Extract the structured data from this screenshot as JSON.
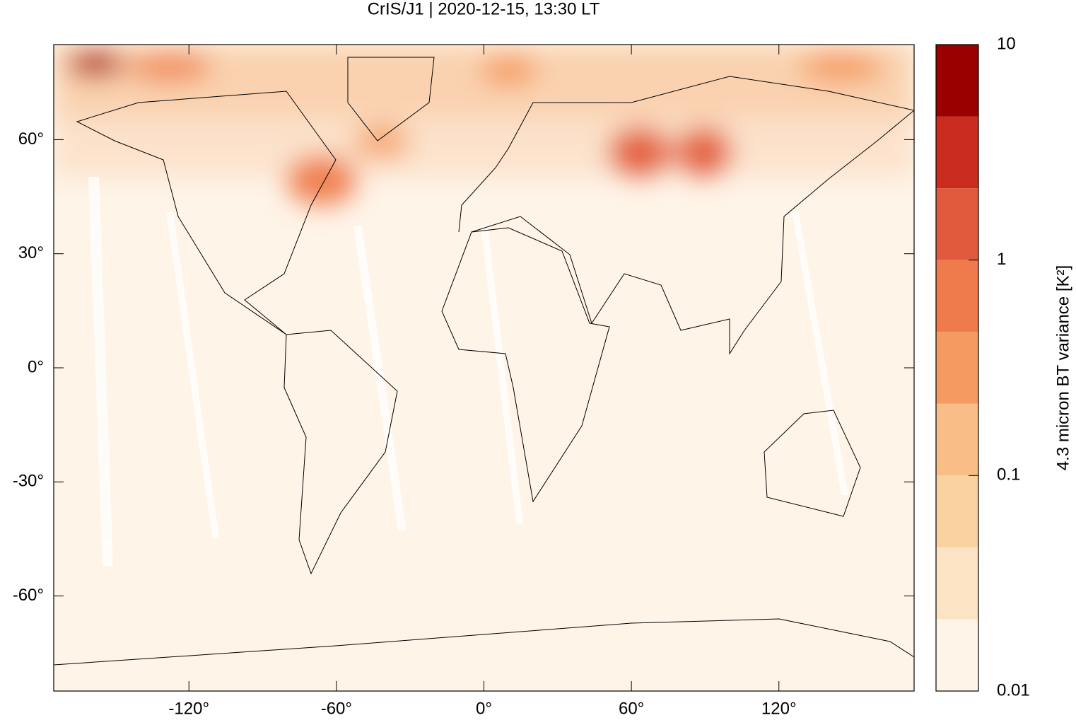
{
  "chart_data": {
    "type": "heatmap-map",
    "title": "CrIS/J1 | 2020-12-15, 13:30 LT",
    "xlim": [
      -175,
      175
    ],
    "ylim": [
      -85,
      85
    ],
    "xticks": [
      {
        "value": -120,
        "label": "-120°"
      },
      {
        "value": -60,
        "label": "-60°"
      },
      {
        "value": 0,
        "label": "0°"
      },
      {
        "value": 60,
        "label": "60°"
      },
      {
        "value": 120,
        "label": "120°"
      }
    ],
    "yticks": [
      {
        "value": 60,
        "label": "60°"
      },
      {
        "value": 30,
        "label": "30°"
      },
      {
        "value": 0,
        "label": "0°"
      },
      {
        "value": -30,
        "label": "-30°"
      },
      {
        "value": -60,
        "label": "-60°"
      }
    ],
    "colorbar": {
      "label": "4.3 micron BT variance [K²]",
      "log": true,
      "lim": [
        0.01,
        10
      ],
      "ticks": [
        0.01,
        0.1,
        1,
        10
      ],
      "colors": [
        "#fef4e8",
        "#fbe3c4",
        "#fad2a0",
        "#f9bd87",
        "#f59b62",
        "#ef7a4c",
        "#e25a3e",
        "#ca2c1f",
        "#990000"
      ]
    }
  }
}
